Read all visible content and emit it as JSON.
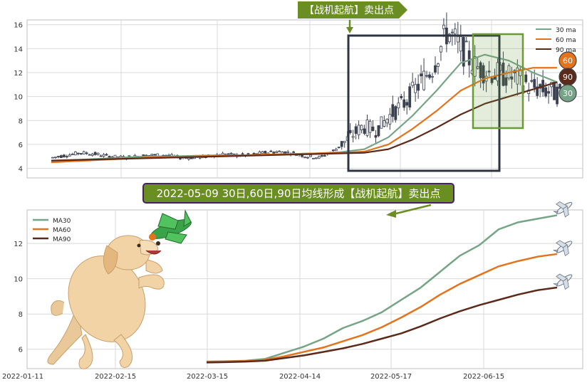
{
  "colors": {
    "ma30": "#76a487",
    "ma60": "#e3731d",
    "ma90": "#5b2a1a",
    "candle": "#3b4150",
    "grid": "#d9d9d9",
    "panel_border": "#bfbfbf",
    "banner_fill": "#6b8e23",
    "banner_border": "#4b2060",
    "box_dark": "#2f3441",
    "box_green": "#6b9b37",
    "badge60": "#e3731d",
    "badge90": "#5b2a1a",
    "badge30": "#76a487"
  },
  "chart_data": [
    {
      "type": "candlestick",
      "title": "",
      "y_ticks": [
        4,
        6,
        8,
        10,
        12,
        14,
        16
      ],
      "ylim": [
        3.2,
        16.4
      ],
      "legend": {
        "placement": "top-right",
        "entries": [
          {
            "label": "30 ma",
            "color_key": "ma30"
          },
          {
            "label": "60 ma",
            "color_key": "ma60"
          },
          {
            "label": "90 ma",
            "color_key": "ma90"
          }
        ]
      },
      "candles_close_outline": [
        [
          0,
          4.9
        ],
        [
          5,
          5.1
        ],
        [
          10,
          5.3
        ],
        [
          15,
          5.2
        ],
        [
          20,
          5.0
        ],
        [
          25,
          4.9
        ],
        [
          30,
          5.0
        ],
        [
          35,
          5.1
        ],
        [
          40,
          5.1
        ],
        [
          45,
          4.9
        ],
        [
          50,
          4.9
        ],
        [
          55,
          5.0
        ],
        [
          60,
          5.2
        ],
        [
          65,
          5.1
        ],
        [
          70,
          5.1
        ],
        [
          75,
          5.3
        ],
        [
          80,
          5.4
        ],
        [
          85,
          5.3
        ],
        [
          90,
          5.0
        ],
        [
          95,
          4.9
        ],
        [
          100,
          5.5
        ],
        [
          105,
          6.5
        ],
        [
          110,
          7.5
        ],
        [
          115,
          7.2
        ],
        [
          120,
          8.5
        ],
        [
          125,
          9.5
        ],
        [
          130,
          11.0
        ],
        [
          135,
          12.5
        ],
        [
          140,
          15.5
        ],
        [
          145,
          14.0
        ],
        [
          150,
          12.5
        ],
        [
          155,
          12.0
        ],
        [
          160,
          11.8
        ],
        [
          165,
          11.5
        ],
        [
          170,
          10.8
        ],
        [
          175,
          10.5
        ],
        [
          180,
          10.2
        ]
      ],
      "ma_series": [
        {
          "color_key": "ma30",
          "y": [
            4.6,
            4.7,
            4.8,
            4.9,
            5.0,
            5.0,
            5.05,
            5.1,
            5.1,
            5.15,
            5.2,
            5.25,
            5.35,
            5.6,
            6.6,
            8.4,
            10.5,
            12.8,
            13.5,
            13.0,
            12.0,
            11.2
          ]
        },
        {
          "color_key": "ma60",
          "y": [
            4.5,
            4.6,
            4.7,
            4.8,
            4.9,
            4.95,
            5.0,
            5.05,
            5.1,
            5.15,
            5.2,
            5.25,
            5.3,
            5.4,
            6.0,
            7.3,
            8.8,
            10.5,
            11.5,
            12.0,
            12.4,
            12.4
          ]
        },
        {
          "color_key": "ma90",
          "y": [
            4.65,
            4.7,
            4.75,
            4.8,
            4.85,
            4.9,
            4.95,
            5.0,
            5.05,
            5.1,
            5.15,
            5.2,
            5.25,
            5.3,
            5.6,
            6.4,
            7.4,
            8.5,
            9.4,
            10.0,
            10.6,
            11.2
          ]
        }
      ],
      "badges": [
        {
          "label": "60",
          "color_key": "badge60"
        },
        {
          "label": "90",
          "color_key": "badge90"
        },
        {
          "label": "30",
          "color_key": "badge30"
        }
      ],
      "top_banner": "【战机起航】卖出点"
    },
    {
      "type": "line",
      "title": "",
      "banner": "2022-05-09 30日,60日,90日均线形成【战机起航】卖出点",
      "y_ticks": [
        6,
        8,
        10,
        12
      ],
      "ylim": [
        4.9,
        13.9
      ],
      "x_ticks": [
        "2022-01-11",
        "2022-02-15",
        "2022-03-15",
        "2022-04-14",
        "2022-05-17",
        "2022-06-15"
      ],
      "legend": {
        "placement": "top-left",
        "entries": [
          {
            "label": "MA30",
            "color_key": "ma30"
          },
          {
            "label": "MA60",
            "color_key": "ma60"
          },
          {
            "label": "MA90",
            "color_key": "ma90"
          }
        ]
      },
      "series": [
        {
          "name": "MA30",
          "color_key": "ma30",
          "y": [
            5.3,
            5.32,
            5.35,
            5.45,
            5.8,
            6.15,
            6.6,
            7.2,
            7.6,
            8.1,
            8.8,
            9.5,
            10.4,
            11.3,
            11.9,
            12.8,
            13.2,
            13.4,
            13.6
          ]
        },
        {
          "name": "MA60",
          "color_key": "ma60",
          "y": [
            5.3,
            5.31,
            5.33,
            5.4,
            5.6,
            5.85,
            6.1,
            6.45,
            6.8,
            7.25,
            7.8,
            8.4,
            9.1,
            9.7,
            10.2,
            10.7,
            11.0,
            11.25,
            11.4
          ]
        },
        {
          "name": "MA90",
          "color_key": "ma90",
          "y": [
            5.25,
            5.27,
            5.3,
            5.35,
            5.5,
            5.65,
            5.85,
            6.05,
            6.3,
            6.6,
            6.9,
            7.3,
            7.75,
            8.15,
            8.5,
            8.8,
            9.1,
            9.35,
            9.5
          ]
        }
      ]
    }
  ]
}
